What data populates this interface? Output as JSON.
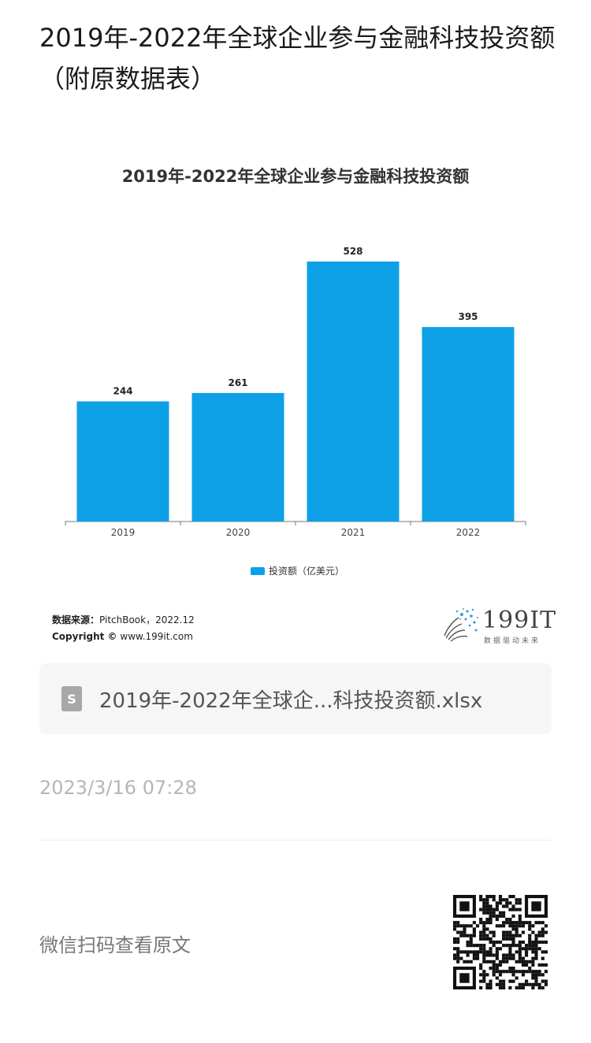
{
  "article": {
    "title": "2019年-2022年全球企业参与金融科技投资额（附原数据表）"
  },
  "chart_data": {
    "type": "bar",
    "title": "2019年-2022年全球企业参与金融科技投资额",
    "categories": [
      "2019",
      "2020",
      "2021",
      "2022"
    ],
    "series": [
      {
        "name": "投资额（亿美元）",
        "values": [
          244,
          261,
          528,
          395
        ],
        "color": "#0ea0e6"
      }
    ],
    "xlabel": "",
    "ylabel": "",
    "ylim": [
      0,
      560
    ],
    "grid": false,
    "legend_position": "bottom",
    "data_labels": [
      "244",
      "261",
      "528",
      "395"
    ]
  },
  "source": {
    "label": "数据来源：",
    "value": "PitchBook，2022.12",
    "copyright_label": "Copyright ©",
    "copyright_value": "www.199it.com"
  },
  "brand": {
    "name": "199IT",
    "slogan": "数据驱动未来"
  },
  "file": {
    "icon": "s-file-icon",
    "icon_letter": "S",
    "name": "2019年-2022年全球企...科技投资额.xlsx"
  },
  "timestamp": "2023/3/16 07:28",
  "qr": {
    "hint": "微信扫码查看原文"
  }
}
